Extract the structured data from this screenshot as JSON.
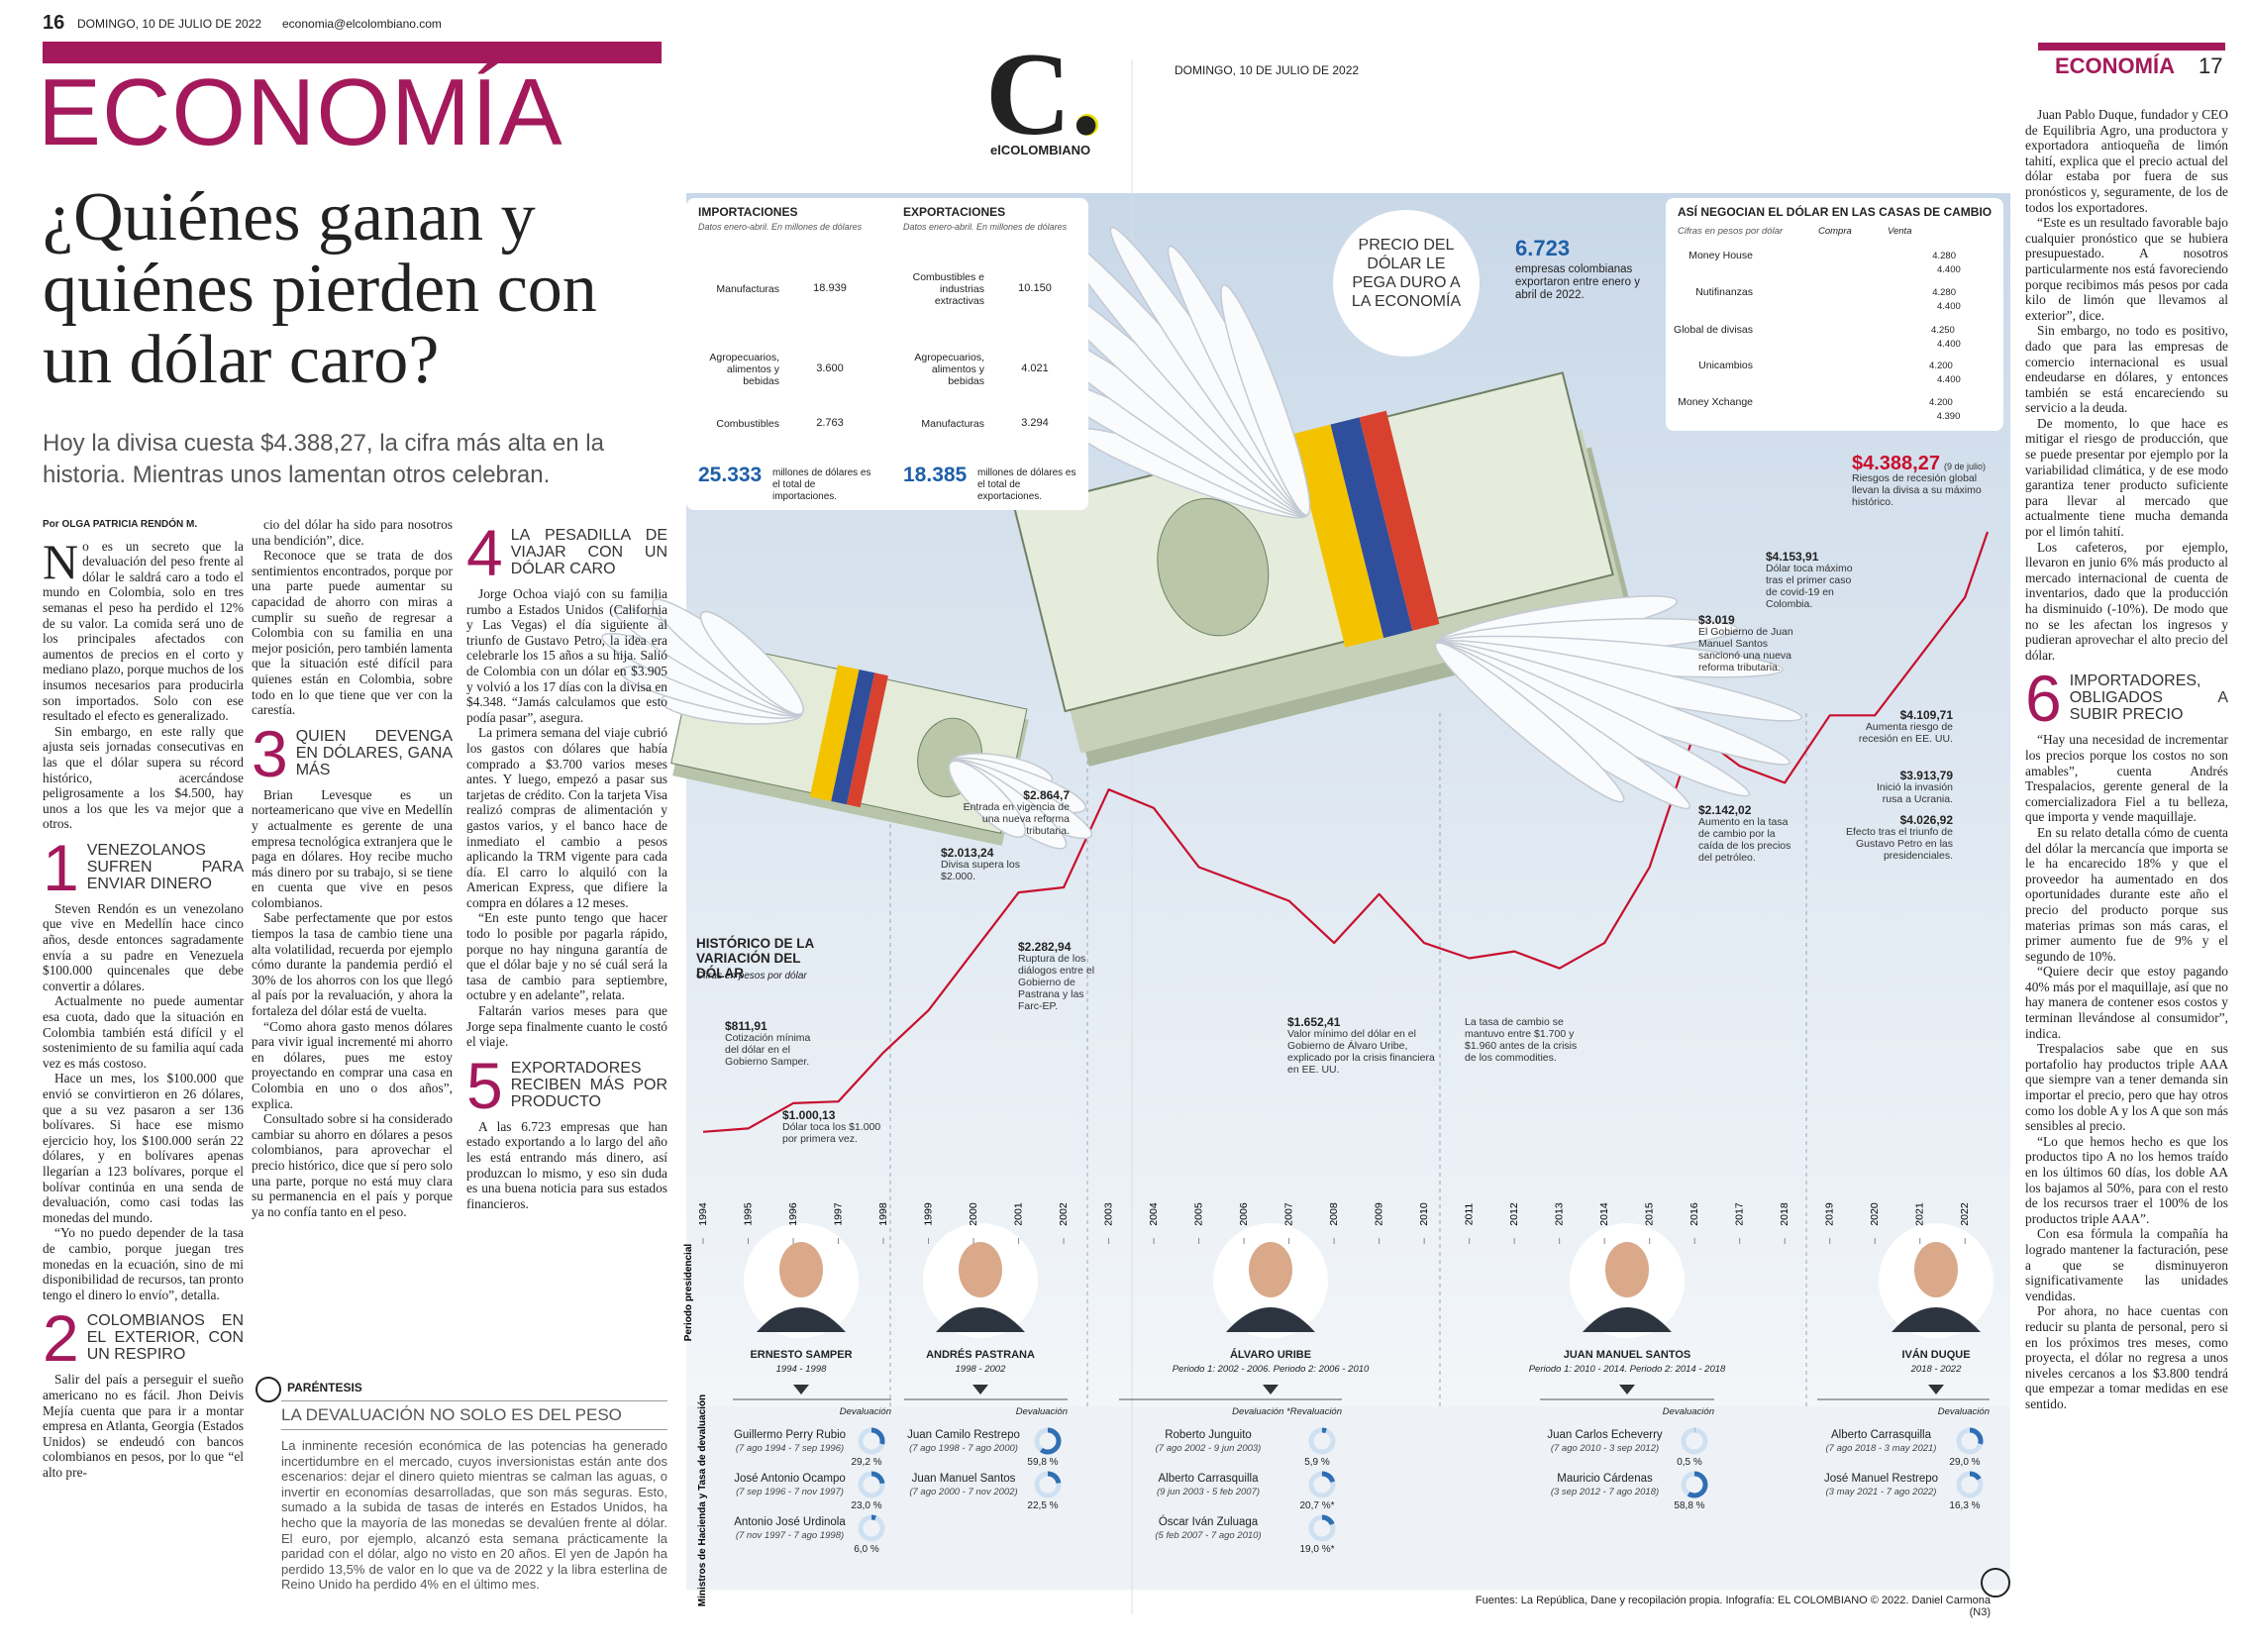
{
  "header_left": {
    "page": "16",
    "date": "DOMINGO, 10 DE JULIO DE 2022",
    "email": "economia@elcolombiano.com"
  },
  "header_right": {
    "date": "DOMINGO, 10 DE JULIO DE 2022",
    "section": "ECONOMÍA",
    "page": "17"
  },
  "section": "ECONOMÍA",
  "logo": {
    "mark": "C.",
    "name": "elCOLOMBIANO"
  },
  "headline": "¿Quiénes ganan y quiénes pierden con un dólar caro?",
  "subtitle": "Hoy la divisa cuesta $4.388,27, la cifra más alta en la historia. Mientras unos lamentan otros celebran.",
  "byline": "Por OLGA PATRICIA RENDÓN M.",
  "columns": [
    [
      {
        "text": "No es un secreto que la devaluación del peso frente al dólar le saldrá caro a todo el mundo en Colombia, solo en tres semanas el peso ha perdido el 12% de su valor. La comida será uno de los principales afectados con aumentos de precios en el corto y mediano plazo, porque muchos de los insumos necesarios para producirla son importados. Solo con ese resultado el efecto es generalizado."
      },
      {
        "text": "Sin embargo, en este rally que ajusta seis jornadas consecutivas en las que el dólar supera su récord histórico, acercándose peligrosamente a los $4.500, hay unos a los que les va mejor que a otros."
      },
      {
        "number": 1,
        "heading": "VENEZOLANOS SUFREN PARA ENVIAR DINERO"
      },
      {
        "text": "Steven Rendón es un venezolano que vive en Medellín hace cinco años, desde entonces sagradamente envía a su padre en Venezuela $100.000 quincenales que debe convertir a dólares."
      },
      {
        "text": "Actualmente no puede aumentar esa cuota, dado que la situación en Colombia también está difícil y el sostenimiento de su familia aquí cada vez es más costoso."
      },
      {
        "text": "Hace un mes, los $100.000 que envió se convirtieron en 26 dólares, que a su vez pasaron a ser 136 bolívares. Si hace ese mismo ejercicio hoy, los $100.000 serán 22 dólares, y en bolívares apenas llegarían a 123 bolívares, porque el bolívar continúa en una senda de devaluación, como casi todas las monedas del mundo."
      },
      {
        "text": "“Yo no puedo depender de la tasa de cambio, porque juegan tres monedas en la ecuación, sino de mi disponibilidad de recursos, tan pronto tengo el dinero lo envío”, detalla."
      },
      {
        "number": 2,
        "heading": "COLOMBIANOS EN EL EXTERIOR, CON UN RESPIRO"
      },
      {
        "text": "Salir del país a perseguir el sueño americano no es fácil. Jhon Deivis Mejía cuenta que para ir a montar empresa en Atlanta, Georgia (Estados Unidos) se endeudó con bancos colombianos en pesos, por lo que “el alto pre-"
      }
    ],
    [
      {
        "text": "cio del dólar ha sido para nosotros una bendición”, dice."
      },
      {
        "text": "Reconoce que se trata de dos sentimientos encontrados, porque por una parte puede aumentar su capacidad de ahorro con miras a cumplir su sueño de regresar a Colombia con su familia en una mejor posición, pero también lamenta que la situación esté difícil para quienes están en Colombia, sobre todo en lo que tiene que ver con la carestía."
      },
      {
        "number": 3,
        "heading": "QUIEN DEVENGA EN DÓLARES, GANA MÁS"
      },
      {
        "text": "Brian Levesque es un norteamericano que vive en Medellín y actualmente es gerente de una empresa tecnológica extranjera que le paga en dólares. Hoy recibe mucho más dinero por su trabajo, si se tiene en cuenta que vive en pesos colombianos."
      },
      {
        "text": "Sabe perfectamente que por estos tiempos la tasa de cambio tiene una alta volatilidad, recuerda por ejemplo cómo durante la pandemia perdió el 30% de los ahorros con los que llegó al país por la revaluación, y ahora la fortaleza del dólar está de vuelta."
      },
      {
        "text": "“Como ahora gasto menos dólares para vivir igual incrementé mi ahorro en dólares, pues me estoy proyectando en comprar una casa en Colombia en uno o dos años”, explica."
      },
      {
        "text": "Consultado sobre si ha considerado cambiar su ahorro en dólares a pesos colombianos, para aprovechar el precio histórico, dice que sí pero solo una parte, porque no está muy clara su permanencia en el país y porque ya no confía tanto en el peso."
      }
    ],
    [
      {
        "number": 4,
        "heading": "LA PESADILLA DE VIAJAR CON UN DÓLAR CARO"
      },
      {
        "text": "Jorge Ochoa viajó con su familia rumbo a Estados Unidos (California y Las Vegas) el día siguiente al triunfo de Gustavo Petro, la idea era celebrarle los 15 años a su hija. Salió de Colombia con un dólar en $3.905 y volvió a los 17 días con la divisa en $4.348. “Jamás calculamos que esto podía pasar”, asegura."
      },
      {
        "text": "La primera semana del viaje cubrió los gastos con dólares que había comprado a $3.700 varios meses antes. Y luego, empezó a pasar sus tarjetas de crédito. Con la tarjeta Visa realizó compras de alimentación y gastos varios, y el banco hace de inmediato el cambio a pesos aplicando la TRM vigente para cada día. El carro lo alquiló con la American Express, que difiere la compra en dólares a 12 meses."
      },
      {
        "text": "“En este punto tengo que hacer todo lo posible por pagarla rápido, porque no hay ninguna garantía de que el dólar baje y no sé cuál será la tasa de cambio para septiembre, octubre y en adelante”, relata."
      },
      {
        "text": "Faltarán varios meses para que Jorge sepa finalmente cuanto le costó el viaje."
      },
      {
        "number": 5,
        "heading": "EXPORTADORES RECIBEN MÁS POR PRODUCTO"
      },
      {
        "text": "A las 6.723 empresas que han estado exportando a lo largo del año les está entrando más dinero, así produzcan lo mismo, y eso sin duda es una buena noticia para sus estados financieros."
      }
    ]
  ],
  "right_column": [
    {
      "text": "Juan Pablo Duque, fundador y CEO de Equilibria Agro, una productora y exportadora antioqueña de limón tahití, explica que el precio actual del dólar estaba por fuera de sus pronósticos y, seguramente, de los de todos los exportadores."
    },
    {
      "text": "“Este es un resultado favorable bajo cualquier pronóstico que se hubiera presupuestado. A nosotros particularmente nos está favoreciendo porque recibimos más pesos por cada kilo de limón que llevamos al exterior”, dice."
    },
    {
      "text": "Sin embargo, no todo es positivo, dado que para las empresas de comercio internacional es usual endeudarse en dólares, y entonces también se está encareciendo su servicio a la deuda."
    },
    {
      "text": "De momento, lo que hace es mitigar el riesgo de producción, que se puede presentar por ejemplo por la variabilidad climática, y de ese modo garantiza tener producto suficiente para llevar al mercado que actualmente tiene mucha demanda por el limón tahití."
    },
    {
      "text": "Los cafeteros, por ejemplo, llevaron en junio 6% más producto al mercado internacional de cuenta de inventarios, dado que la producción ha disminuido (-10%). De modo que no se les afectan los ingresos y pudieran aprovechar el alto precio del dólar."
    },
    {
      "number": 6,
      "heading": "IMPORTADORES, OBLIGADOS A SUBIR PRECIO"
    },
    {
      "text": "“Hay una necesidad de incrementar los precios porque los costos no son amables”, cuenta Andrés Trespalacios, gerente general de la comercializadora Fiel a tu belleza, que importa y vende maquillaje."
    },
    {
      "text": "En su relato detalla cómo de cuenta del dólar la mercancía que importa se le ha encarecido 18% y que el proveedor ha aumentado en dos oportunidades durante este año el precio del producto porque sus materias primas son más caras, el primer aumento fue de 9% y el segundo de 10%."
    },
    {
      "text": "“Quiere decir que estoy pagando 40% más por el maquillaje, así que no hay manera de contener esos costos y terminan llevándose al consumidor”, indica."
    },
    {
      "text": "Trespalacios sabe que en sus portafolio hay productos triple AAA que siempre van a tener demanda sin importar el precio, pero que hay otros como los doble A y los A que son más sensibles al precio."
    },
    {
      "text": "“Lo que hemos hecho es que los productos tipo A no los hemos traído en los últimos 60 días, los doble AA los bajamos al 50%, para con el resto de los recursos traer el 100% de los productos triple AAA”."
    },
    {
      "text": "Con esa fórmula la compañía ha logrado mantener la facturación, pese a que se disminuyeron significativamente las unidades vendidas."
    },
    {
      "text": "Por ahora, no hace cuentas con reducir su planta de personal, pero si en los próximos tres meses, como proyecta, el dólar no regresa a unos niveles cercanos a los $3.800 tendrá que empezar a tomar medidas en ese sentido."
    }
  ],
  "parentesis": {
    "label": "PARÉNTESIS",
    "title": "LA DEVALUACIÓN NO SOLO ES DEL PESO",
    "text": "La inminente recesión económica de las potencias ha generado incertidumbre en el mercado, cuyos inversionistas están ante dos escenarios: dejar el dinero quieto mientras se calman las aguas, o invertir en economías desarrolladas, que son más seguras. Esto, sumado a la subida de tasas de interés en Estados Unidos, ha hecho que la mayoría de las monedas se devalúen frente al dólar. El euro, por ejemplo, alcanzó esta semana prácticamente la paridad con el dólar, algo no visto en 20 años. El yen de Japón ha perdido 13,5% de valor en lo que va de 2022 y la libra esterlina de Reino Unido ha perdido 4% en el último mes."
  },
  "trade": [
    {
      "title": "IMPORTACIONES",
      "subtitle": "Datos enero-abril. En millones de dólares",
      "items": [
        {
          "label": "Manufacturas",
          "value": 18939,
          "value_label": "18.939"
        },
        {
          "label": "Agropecuarios, alimentos y bebidas",
          "value": 3600,
          "value_label": "3.600"
        },
        {
          "label": "Combustibles",
          "value": 2763,
          "value_label": "2.763"
        }
      ],
      "total": "25.333",
      "total_text": "millones de dólares es el total de importaciones."
    },
    {
      "title": "EXPORTACIONES",
      "subtitle": "Datos enero-abril. En millones de dólares",
      "items": [
        {
          "label": "Combustibles e industrias extractivas",
          "value": 10150,
          "value_label": "10.150"
        },
        {
          "label": "Agropecuarios, alimentos y bebidas",
          "value": 4021,
          "value_label": "4.021"
        },
        {
          "label": "Manufacturas",
          "value": 3294,
          "value_label": "3.294"
        }
      ],
      "total": "18.385",
      "total_text": "millones de dólares es el total de exportaciones."
    }
  ],
  "price_badge": "PRECIO DEL DÓLAR LE PEGA DURO A LA ECONOMÍA",
  "exporters": {
    "value": "6.723",
    "text": "empresas colombianas exportaron entre enero y abril de 2022."
  },
  "exchange": {
    "title": "ASÍ NEGOCIAN EL DÓLAR EN LAS CASAS DE CAMBIO",
    "subtitle": "Cifras en pesos por dólar",
    "categories": [
      "Money House",
      "Nutifinanzas",
      "Global de divisas",
      "Unicambios",
      "Money Xchange"
    ],
    "series": [
      {
        "name": "Compra",
        "color": "#3a6db3",
        "values": [
          4280,
          4280,
          4250,
          4200,
          4200
        ],
        "value_labels": [
          "4.280",
          "4.280",
          "4.250",
          "4.200",
          "4.200"
        ]
      },
      {
        "name": "Venta",
        "color": "#a9c7ea",
        "values": [
          4400,
          4400,
          4400,
          4400,
          4390
        ],
        "value_labels": [
          "4.400",
          "4.400",
          "4.400",
          "4.400",
          "4.390"
        ]
      }
    ]
  },
  "history": {
    "title": "HISTÓRICO DE LA VARIACIÓN DEL DÓLAR",
    "subtitle": "Cifras en pesos por dólar",
    "color": "#c8102e",
    "x": [
      1994,
      1995,
      1996,
      1997,
      1998,
      1999,
      2000,
      2001,
      2002,
      2003,
      2004,
      2005,
      2006,
      2007,
      2008,
      2009,
      2010,
      2011,
      2012,
      2013,
      2014,
      2015,
      2016,
      2017,
      2018,
      2019,
      2020,
      2021,
      2022,
      2022.5
    ],
    "values": [
      830,
      850,
      1000,
      1010,
      1300,
      1550,
      1900,
      2250,
      2280,
      2860,
      2750,
      2400,
      2300,
      2200,
      1950,
      2240,
      1950,
      1860,
      1900,
      1800,
      1950,
      2400,
      3200,
      3000,
      2900,
      3300,
      3300,
      3650,
      4000,
      4388.27
    ],
    "xlim": [
      1994,
      2022.5
    ],
    "ylim": [
      500,
      4500
    ],
    "year_labels": [
      1994,
      1995,
      1996,
      1997,
      1998,
      1999,
      2000,
      2001,
      2002,
      2003,
      2004,
      2005,
      2006,
      2007,
      2008,
      2009,
      2010,
      2011,
      2012,
      2013,
      2014,
      2015,
      2016,
      2017,
      2018,
      2019,
      2020,
      2021,
      2022
    ],
    "annotations": [
      {
        "amount": "$811,91",
        "text": "Cotización mínima del dólar en el Gobierno Samper."
      },
      {
        "amount": "$1.000,13",
        "text": "Dólar toca los $1.000 por primera vez."
      },
      {
        "amount": "$2.013,24",
        "text": "Divisa supera los $2.000."
      },
      {
        "amount": "$2.864,7",
        "text": "Entrada en vigencia de una nueva reforma tributaria."
      },
      {
        "amount": "$2.282,94",
        "text": "Ruptura de los diálogos entre el Gobierno de Pastrana y las Farc-EP."
      },
      {
        "amount": "$1.652,41",
        "text": "Valor mínimo del dólar en el Gobierno de Álvaro Uribe, explicado por la crisis financiera en EE. UU."
      },
      {
        "text": "La tasa de cambio se mantuvo entre $1.700 y $1.960 antes de la crisis de los commodities."
      },
      {
        "amount": "$2.142,02",
        "text": "Aumento en la tasa de cambio por la caída de los precios del petróleo."
      },
      {
        "amount": "$3.019",
        "text": "El Gobierno de Juan Manuel Santos sancionó una nueva reforma tributaria."
      },
      {
        "amount": "$4.153,91",
        "text": "Dólar toca máximo tras el primer caso de covid-19 en Colombia."
      },
      {
        "amount": "$4.109,71",
        "text": "Aumenta riesgo de recesión en EE. UU."
      },
      {
        "amount": "$3.913,79",
        "text": "Inició la invasión rusa a Ucrania."
      },
      {
        "amount": "$4.026,92",
        "text": "Efecto tras el triunfo de Gustavo Petro en las presidenciales."
      },
      {
        "amount": "$4.388,27",
        "date": "(9 de julio)",
        "text": "Riesgos de recesión global llevan la divisa a su máximo histórico."
      }
    ]
  },
  "presidents_label": "Periodo presidencial",
  "ministers_label": "Ministros de Hacienda y Tasa de devaluación",
  "presidents": [
    {
      "name": "ERNESTO SAMPER",
      "period": "1994 - 1998",
      "header": "Devaluación",
      "ministers": [
        {
          "name": "Guillermo Perry Rubio",
          "dates": "(7 ago 1994 - 7 sep 1996)",
          "pct": 29.2,
          "pct_label": "29,2 %"
        },
        {
          "name": "José Antonio Ocampo",
          "dates": "(7 sep 1996 - 7 nov 1997)",
          "pct": 23.0,
          "pct_label": "23,0 %"
        },
        {
          "name": "Antonio José Urdinola",
          "dates": "(7 nov 1997 - 7 ago 1998)",
          "pct": 6.0,
          "pct_label": "6,0 %"
        }
      ]
    },
    {
      "name": "ANDRÉS PASTRANA",
      "period": "1998 - 2002",
      "header": "Devaluación",
      "ministers": [
        {
          "name": "Juan Camilo Restrepo",
          "dates": "(7 ago 1998 - 7 ago 2000)",
          "pct": 59.8,
          "pct_label": "59,8 %"
        },
        {
          "name": "Juan Manuel Santos",
          "dates": "(7 ago 2000 - 7 nov 2002)",
          "pct": 22.5,
          "pct_label": "22,5 %"
        }
      ]
    },
    {
      "name": "ÁLVARO URIBE",
      "period": "Periodo 1: 2002 - 2006. Periodo 2: 2006 - 2010",
      "header": "Devaluación  *Revaluación",
      "ministers": [
        {
          "name": "Roberto Junguito",
          "dates": "(7 ago 2002 - 9 jun 2003)",
          "pct": 5.9,
          "pct_label": "5,9 %"
        },
        {
          "name": "Alberto Carrasquilla",
          "dates": "(9 jun 2003 - 5 feb 2007)",
          "pct": 20.7,
          "pct_label": "20,7 %*"
        },
        {
          "name": "Óscar Iván Zuluaga",
          "dates": "(5 feb 2007 - 7 ago 2010)",
          "pct": 19.0,
          "pct_label": "19,0 %*"
        }
      ]
    },
    {
      "name": "JUAN MANUEL SANTOS",
      "period": "Periodo 1: 2010 - 2014. Periodo 2: 2014 - 2018",
      "header": "Devaluación",
      "ministers": [
        {
          "name": "Juan Carlos Echeverry",
          "dates": "(7 ago 2010 - 3 sep 2012)",
          "pct": 0.5,
          "pct_label": "0,5 %"
        },
        {
          "name": "Mauricio Cárdenas",
          "dates": "(3 sep 2012 - 7 ago 2018)",
          "pct": 58.8,
          "pct_label": "58,8 %"
        }
      ]
    },
    {
      "name": "IVÁN DUQUE",
      "period": "2018 - 2022",
      "header": "Devaluación",
      "ministers": [
        {
          "name": "Alberto Carrasquilla",
          "dates": "(7 ago 2018 - 3 may 2021)",
          "pct": 29.0,
          "pct_label": "29,0 %"
        },
        {
          "name": "José Manuel Restrepo",
          "dates": "(3 may 2021 - 7 ago 2022)",
          "pct": 16.3,
          "pct_label": "16,3 %"
        }
      ]
    }
  ],
  "footer": "Fuentes: La República, Dane y recopilación propia. Infografía: EL COLOMBIANO © 2022. Daniel Carmona (N3)"
}
